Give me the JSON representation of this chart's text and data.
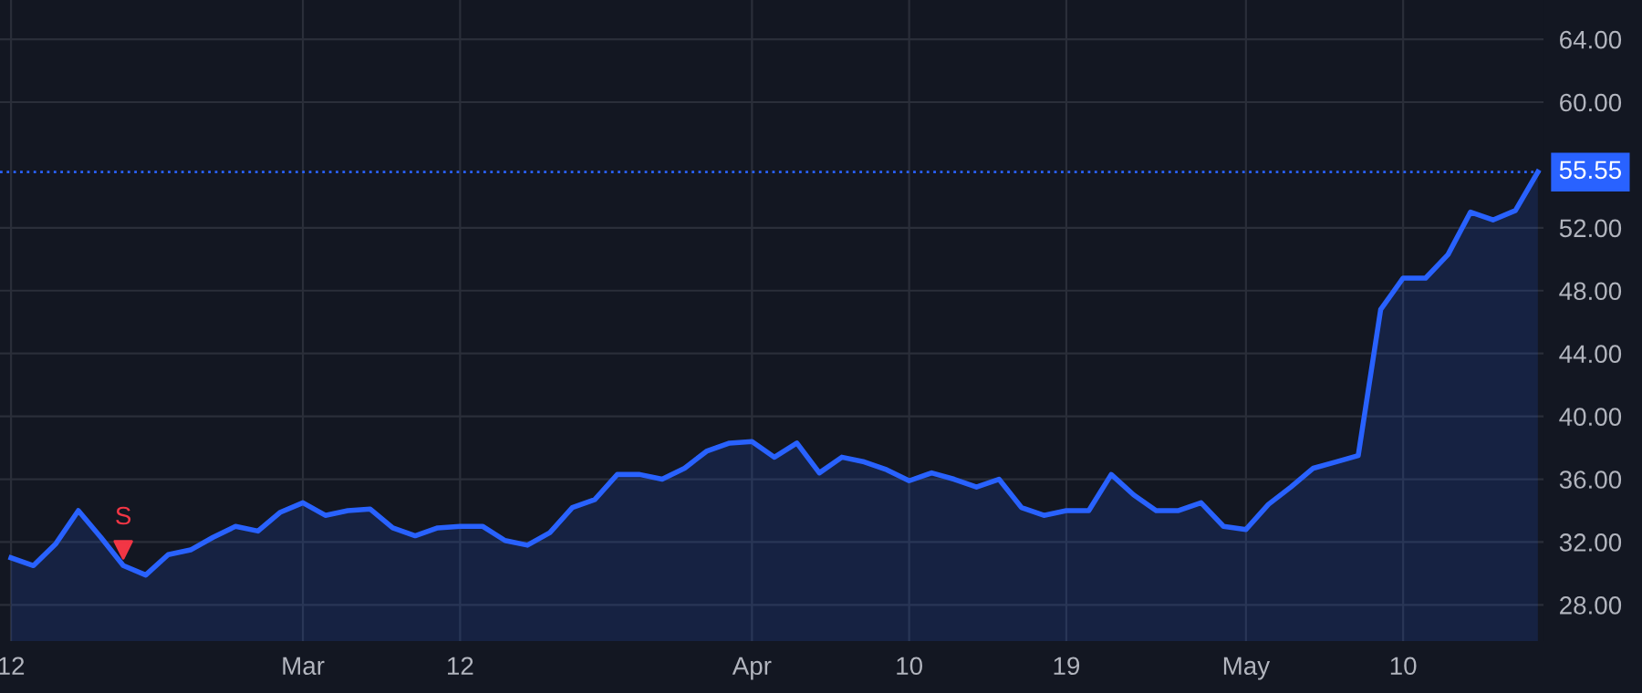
{
  "chart_data": {
    "type": "area",
    "categories": [
      "12",
      null,
      null,
      null,
      null,
      null,
      null,
      null,
      null,
      null,
      null,
      null,
      null,
      "Mar",
      null,
      null,
      null,
      null,
      null,
      null,
      "12",
      null,
      null,
      null,
      null,
      null,
      null,
      null,
      null,
      null,
      null,
      null,
      null,
      "Apr",
      null,
      null,
      null,
      null,
      null,
      null,
      "10",
      null,
      null,
      null,
      null,
      null,
      null,
      "19",
      null,
      null,
      null,
      null,
      null,
      null,
      null,
      "May",
      null,
      null,
      null,
      null,
      null,
      null,
      "10",
      null,
      null,
      null,
      null,
      null,
      null
    ],
    "series": [
      {
        "color": "#2962ff",
        "values": [
          31.0,
          30.5,
          31.9,
          34.0,
          32.3,
          30.5,
          29.9,
          31.2,
          31.5,
          32.3,
          33.0,
          32.7,
          33.9,
          34.5,
          33.7,
          34.0,
          34.1,
          32.9,
          32.4,
          32.9,
          33.0,
          33.0,
          32.1,
          31.8,
          32.6,
          34.2,
          34.7,
          36.3,
          36.3,
          36.0,
          36.7,
          37.8,
          38.3,
          38.4,
          37.4,
          38.3,
          36.4,
          37.4,
          37.1,
          36.6,
          35.9,
          36.4,
          36.0,
          35.5,
          36.0,
          34.2,
          33.7,
          34.0,
          34.0,
          36.3,
          35.0,
          34.0,
          34.0,
          34.5,
          33.0,
          32.8,
          34.4,
          35.5,
          36.7,
          37.1,
          37.5,
          46.8,
          48.8,
          48.8,
          50.3,
          53.0,
          52.5,
          53.1,
          55.55
        ]
      },
      {
        "type": "scatter",
        "color": "#f23645",
        "marker": "triangle",
        "values": [
          null,
          null,
          null,
          null,
          null,
          31.5,
          null,
          null,
          null,
          null,
          null,
          null,
          null,
          null,
          null,
          null,
          null,
          null,
          null,
          null,
          null,
          null,
          null,
          null,
          null,
          null,
          null,
          null,
          null,
          null,
          null,
          null,
          null,
          null,
          null,
          null,
          null,
          null,
          null,
          null,
          null,
          null,
          null,
          null,
          null,
          null,
          null,
          null,
          null,
          null,
          null,
          null,
          null,
          null,
          null,
          null,
          null,
          null,
          null,
          null,
          null,
          null,
          null,
          null,
          null,
          null,
          null,
          null,
          null
        ],
        "value_labels": [
          null,
          null,
          null,
          null,
          null,
          "S",
          null,
          null,
          null,
          null,
          null,
          null,
          null,
          null,
          null,
          null,
          null,
          null,
          null,
          null,
          null,
          null,
          null,
          null,
          null,
          null,
          null,
          null,
          null,
          null,
          null,
          null,
          null,
          null,
          null,
          null,
          null,
          null,
          null,
          null,
          null,
          null,
          null,
          null,
          null,
          null,
          null,
          null,
          null,
          null,
          null,
          null,
          null,
          null,
          null,
          null,
          null,
          null,
          null,
          null,
          null,
          null,
          null,
          null,
          null,
          null,
          null,
          null,
          null
        ]
      }
    ],
    "ylim": [
      25.7,
      66.5
    ],
    "yticks": [
      {
        "value": 28,
        "label": "28.00"
      },
      {
        "value": 32,
        "label": "32.00"
      },
      {
        "value": 36,
        "label": "36.00"
      },
      {
        "value": 40,
        "label": "40.00"
      },
      {
        "value": 44,
        "label": "44.00"
      },
      {
        "value": 48,
        "label": "48.00"
      },
      {
        "value": 52,
        "label": "52.00"
      },
      {
        "value": 60,
        "label": "60.00"
      },
      {
        "value": 64,
        "label": "64.00"
      }
    ],
    "ref_lines": [
      {
        "axis": "y",
        "value": 55.55,
        "label": "55.55",
        "color": "#2962ff",
        "line_style": "dotted"
      }
    ],
    "grid": true
  }
}
